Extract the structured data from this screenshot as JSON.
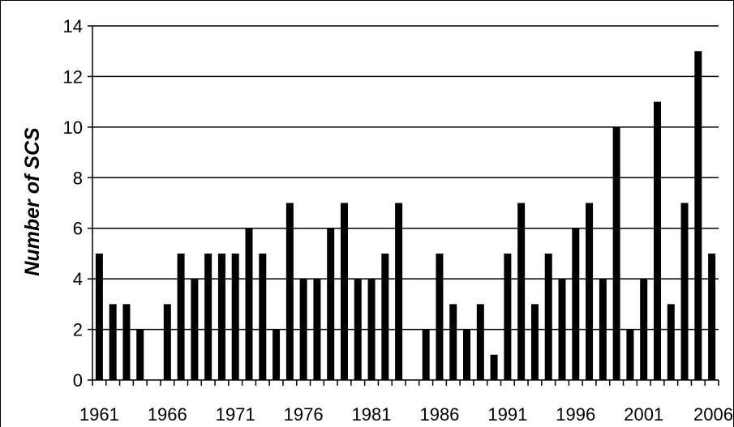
{
  "chart_data": {
    "type": "bar",
    "title": "",
    "xlabel": "",
    "ylabel": "Number of SCS",
    "ylim": [
      0,
      14
    ],
    "ytick_step": 2,
    "yticks": [
      "0",
      "2",
      "4",
      "6",
      "8",
      "10",
      "12",
      "14"
    ],
    "xtick_labels": [
      "1961",
      "1966",
      "1971",
      "1976",
      "1981",
      "1986",
      "1991",
      "1996",
      "2001",
      "2006"
    ],
    "grid": "horizontal",
    "bar_color": "#000000",
    "categories": [
      1961,
      1962,
      1963,
      1964,
      1965,
      1966,
      1967,
      1968,
      1969,
      1970,
      1971,
      1972,
      1973,
      1974,
      1975,
      1976,
      1977,
      1978,
      1979,
      1980,
      1981,
      1982,
      1983,
      1984,
      1985,
      1986,
      1987,
      1988,
      1989,
      1990,
      1991,
      1992,
      1993,
      1994,
      1995,
      1996,
      1997,
      1998,
      1999,
      2000,
      2001,
      2002,
      2003,
      2004,
      2005,
      2006
    ],
    "values": [
      5,
      3,
      3,
      2,
      0,
      3,
      5,
      4,
      5,
      5,
      5,
      6,
      5,
      2,
      7,
      4,
      4,
      6,
      7,
      4,
      4,
      5,
      7,
      0,
      2,
      5,
      3,
      2,
      3,
      1,
      5,
      7,
      3,
      5,
      4,
      6,
      7,
      4,
      10,
      2,
      4,
      11,
      3,
      7,
      13,
      5
    ]
  }
}
